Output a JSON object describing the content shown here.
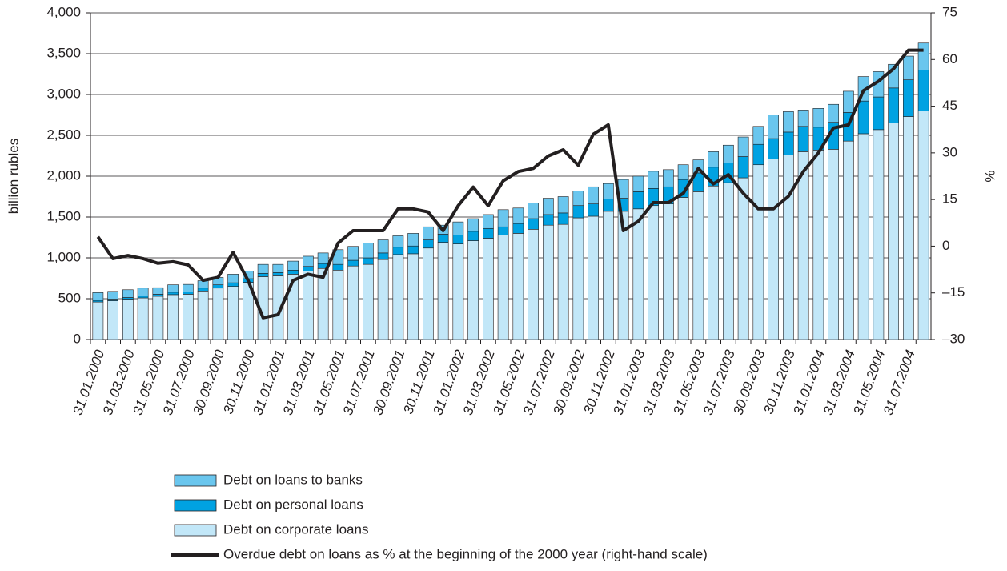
{
  "chart_data": {
    "type": "bar",
    "stacked": true,
    "y_label": "billion rubles",
    "y2_label": "%",
    "categories": [
      "31.01.2000",
      null,
      "31.03.2000",
      null,
      "31.05.2000",
      null,
      "31.07.2000",
      null,
      "30.09.2000",
      null,
      "30.11.2000",
      null,
      "31.01.2001",
      null,
      "31.03.2001",
      null,
      "31.05.2001",
      null,
      "31.07.2001",
      null,
      "30.09.2001",
      null,
      "30.11.2001",
      null,
      "31.01.2002",
      null,
      "31.03.2002",
      null,
      "31.05.2002",
      null,
      "31.07.2002",
      null,
      "30.09.2002",
      null,
      "30.11.2002",
      null,
      "31.01.2003",
      null,
      "31.03.2003",
      null,
      "31.05.2003",
      null,
      "31.07.2003",
      null,
      "30.09.2003",
      null,
      "30.11.2003",
      null,
      "31.01.2004",
      null,
      "31.03.2004",
      null,
      "31.05.2004",
      null,
      "31.07.2004",
      null
    ],
    "series": [
      {
        "name": "Debt on corporate loans",
        "color": "#c2e7f8",
        "values": [
          460,
          475,
          495,
          510,
          530,
          550,
          555,
          595,
          630,
          650,
          700,
          770,
          780,
          800,
          840,
          870,
          850,
          900,
          920,
          980,
          1040,
          1050,
          1120,
          1190,
          1170,
          1210,
          1240,
          1280,
          1300,
          1350,
          1400,
          1410,
          1490,
          1510,
          1570,
          1570,
          1600,
          1640,
          1660,
          1740,
          1810,
          1880,
          1920,
          1980,
          2140,
          2210,
          2260,
          2300,
          2320,
          2330,
          2430,
          2520,
          2570,
          2650,
          2730,
          2800
        ]
      },
      {
        "name": "Debt on personal loans",
        "color": "#00a2e2",
        "values": [
          20,
          20,
          20,
          22,
          25,
          30,
          30,
          35,
          40,
          45,
          45,
          40,
          40,
          50,
          55,
          60,
          70,
          70,
          80,
          80,
          90,
          95,
          100,
          100,
          110,
          115,
          120,
          100,
          120,
          130,
          130,
          140,
          150,
          150,
          150,
          160,
          210,
          210,
          210,
          220,
          230,
          230,
          240,
          260,
          250,
          250,
          280,
          310,
          280,
          330,
          350,
          400,
          400,
          430,
          450,
          500
        ]
      },
      {
        "name": "Debt on loans to banks",
        "color": "#6ac6ee",
        "values": [
          95,
          95,
          95,
          98,
          80,
          90,
          90,
          90,
          90,
          105,
          95,
          110,
          100,
          110,
          125,
          130,
          180,
          170,
          180,
          160,
          140,
          155,
          160,
          110,
          160,
          155,
          170,
          210,
          190,
          190,
          200,
          200,
          180,
          210,
          190,
          230,
          190,
          210,
          210,
          180,
          160,
          190,
          220,
          240,
          220,
          290,
          250,
          200,
          230,
          220,
          260,
          300,
          310,
          290,
          290,
          330
        ]
      },
      {
        "name": "Overdue debt on loans as % at the beginning of the 2000 year (right-hand scale)",
        "color": "#231f20",
        "type": "line",
        "axis": "y2",
        "values": [
          3,
          -4,
          -3,
          -4,
          -5.5,
          -5,
          -6,
          -11,
          -10,
          -2,
          -11,
          -23,
          -22,
          -11,
          -9,
          -10,
          1,
          5,
          5,
          5,
          12,
          12,
          11,
          5,
          13,
          19,
          13,
          21,
          24,
          25,
          29,
          31,
          26,
          36,
          39,
          5,
          8,
          14,
          14,
          17,
          25,
          20,
          23,
          17,
          12,
          12,
          16,
          24,
          30,
          38,
          39,
          50,
          53,
          57,
          63,
          63
        ]
      }
    ],
    "ylim": [
      0,
      4000
    ],
    "yticks": [
      0,
      500,
      {
        "value": 1000,
        "label": "1,000"
      },
      {
        "value": 1500,
        "label": "1,500"
      },
      {
        "value": 2000,
        "label": "2,000"
      },
      {
        "value": 2500,
        "label": "2,500"
      },
      {
        "value": 3000,
        "label": "3,000"
      },
      {
        "value": 3500,
        "label": "3,500"
      },
      {
        "value": 4000,
        "label": "4,000"
      }
    ],
    "y2lim": [
      -30,
      75
    ],
    "y2ticks": [
      {
        "value": -30,
        "label": "–30"
      },
      {
        "value": -15,
        "label": "–15"
      },
      0,
      15,
      30,
      45,
      60,
      75
    ],
    "grid": true
  }
}
